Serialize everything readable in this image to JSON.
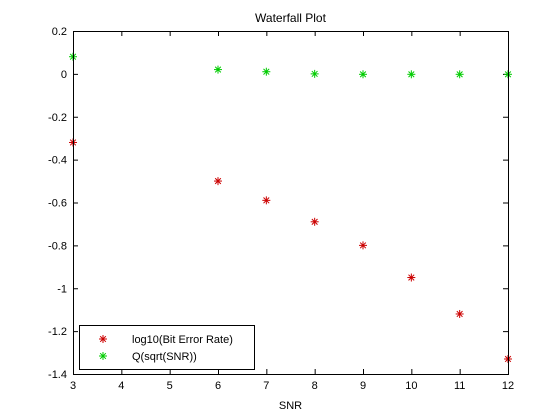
{
  "chart_data": {
    "type": "scatter",
    "title": "Waterfall Plot",
    "xlabel": "SNR",
    "ylabel": "",
    "xlim": [
      3,
      12
    ],
    "ylim": [
      -1.4,
      0.2
    ],
    "xticks": [
      3,
      4,
      5,
      6,
      7,
      8,
      9,
      10,
      11,
      12
    ],
    "yticks": [
      0.2,
      0,
      -0.2,
      -0.4,
      -0.6,
      -0.8,
      -1,
      -1.2,
      -1.4
    ],
    "xtick_labels": [
      "3",
      "4",
      "5",
      "6",
      "7",
      "8",
      "9",
      "10",
      "11",
      "12"
    ],
    "ytick_labels": [
      "0.2",
      "0",
      "-0.2",
      "-0.4",
      "-0.6",
      "-0.8",
      "-1",
      "-1.2",
      "-1.4"
    ],
    "grid": false,
    "legend_position": "bottom-left",
    "marker": "*",
    "series": [
      {
        "name": "log10(Bit Error Rate)",
        "color": "#cc0000",
        "points": [
          {
            "x": 3,
            "y": -0.32
          },
          {
            "x": 6,
            "y": -0.5
          },
          {
            "x": 7,
            "y": -0.59
          },
          {
            "x": 8,
            "y": -0.69
          },
          {
            "x": 9,
            "y": -0.8
          },
          {
            "x": 10,
            "y": -0.95
          },
          {
            "x": 11,
            "y": -1.12
          },
          {
            "x": 12,
            "y": -1.33
          }
        ]
      },
      {
        "name": "Q(sqrt(SNR))",
        "color": "#00cc00",
        "points": [
          {
            "x": 3,
            "y": 0.08
          },
          {
            "x": 6,
            "y": 0.02
          },
          {
            "x": 7,
            "y": 0.01
          },
          {
            "x": 8,
            "y": 0.0
          },
          {
            "x": 9,
            "y": -0.002
          },
          {
            "x": 10,
            "y": -0.002
          },
          {
            "x": 11,
            "y": -0.002
          },
          {
            "x": 12,
            "y": -0.002
          }
        ]
      }
    ]
  }
}
